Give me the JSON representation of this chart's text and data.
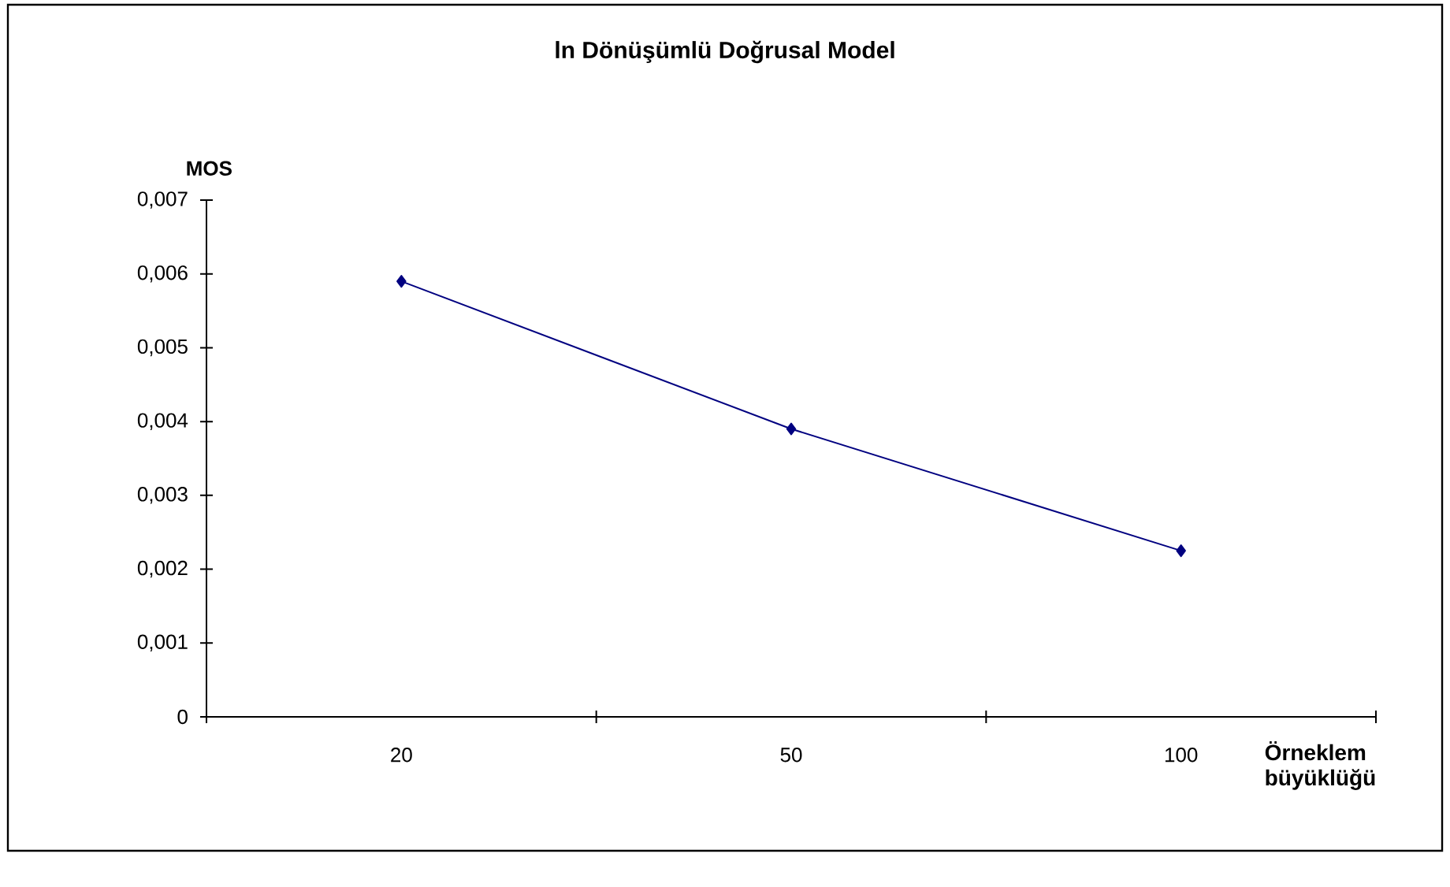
{
  "chart_data": {
    "type": "line",
    "title": "ln Dönüşümlü Doğrusal Model",
    "xlabel": "Örneklem büyüklüğü",
    "ylabel": "MOS",
    "categories": [
      "20",
      "50",
      "100"
    ],
    "series": [
      {
        "color": "#000080",
        "values": [
          0.0059,
          0.0039,
          0.00225
        ]
      }
    ],
    "ylim": [
      0,
      0.007
    ],
    "yticks": [
      {
        "value": 0,
        "label": "0"
      },
      {
        "value": 0.001,
        "label": "0,001"
      },
      {
        "value": 0.002,
        "label": "0,002"
      },
      {
        "value": 0.003,
        "label": "0,003"
      },
      {
        "value": 0.004,
        "label": "0,004"
      },
      {
        "value": 0.005,
        "label": "0,005"
      },
      {
        "value": 0.006,
        "label": "0,006"
      },
      {
        "value": 0.007,
        "label": "0,007"
      }
    ],
    "marker": "diamond",
    "line_style": "solid"
  }
}
